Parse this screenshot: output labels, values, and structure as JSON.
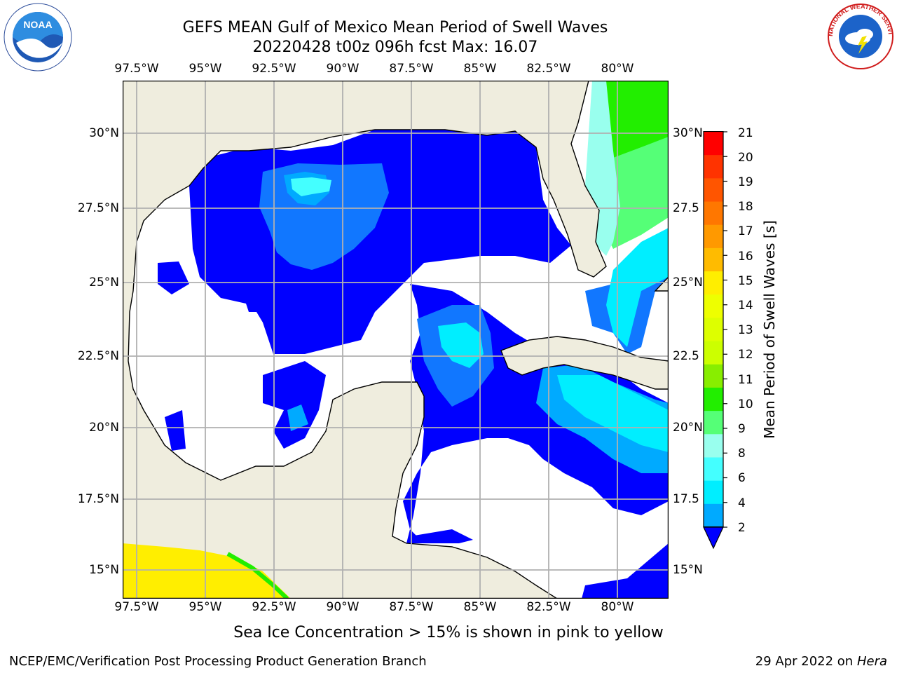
{
  "header": {
    "title_line1": "GEFS MEAN Gulf of Mexico Mean Period of Swell Waves",
    "title_line2": "20220428 t00z 096h fcst   Max: 16.07"
  },
  "logos": {
    "left": {
      "name": "noaa-logo",
      "text": "NOAA"
    },
    "right": {
      "name": "national-weather-service-logo",
      "text": "NATIONAL WEATHER SERVICE"
    }
  },
  "map": {
    "lon_labels": [
      "97.5°W",
      "95°W",
      "92.5°W",
      "90°W",
      "87.5°W",
      "85°W",
      "82.5°W",
      "80°W"
    ],
    "lat_labels_left": [
      "30°N",
      "27.5°N",
      "25°N",
      "22.5°N",
      "20°N",
      "17.5°N",
      "15°N"
    ],
    "lat_labels_right": [
      "30°N",
      "27.5",
      "25°N",
      "22.5",
      "20°N",
      "17.5",
      "15°N"
    ],
    "land_color": "#efedde",
    "water_no_data_color": "#ffffff",
    "gridline_color": "#b0b0b0"
  },
  "colorbar": {
    "title": "Mean Period of Swell Waves [s]",
    "tick_labels": [
      "21",
      "20",
      "19",
      "18",
      "17",
      "16",
      "15",
      "14",
      "13",
      "12",
      "11",
      "10",
      "9",
      "8",
      "6",
      "4",
      "2"
    ],
    "colors": [
      "#ff0000",
      "#ff3300",
      "#ff5500",
      "#ff7700",
      "#ff9900",
      "#ffbb00",
      "#ffee00",
      "#eeff00",
      "#ddff00",
      "#ccff00",
      "#88ee00",
      "#22ee00",
      "#55ff77",
      "#99ffee",
      "#44ffff",
      "#00eeff",
      "#00aaff",
      "#1177ff"
    ],
    "extend_color": "#0000ff"
  },
  "notes": {
    "ice": "Sea Ice Concentration > 15% is shown in pink to yellow"
  },
  "footer": {
    "left": "NCEP/EMC/Verification Post Processing Product Generation Branch",
    "date": "29 Apr 2022 on ",
    "machine": "Hera"
  }
}
